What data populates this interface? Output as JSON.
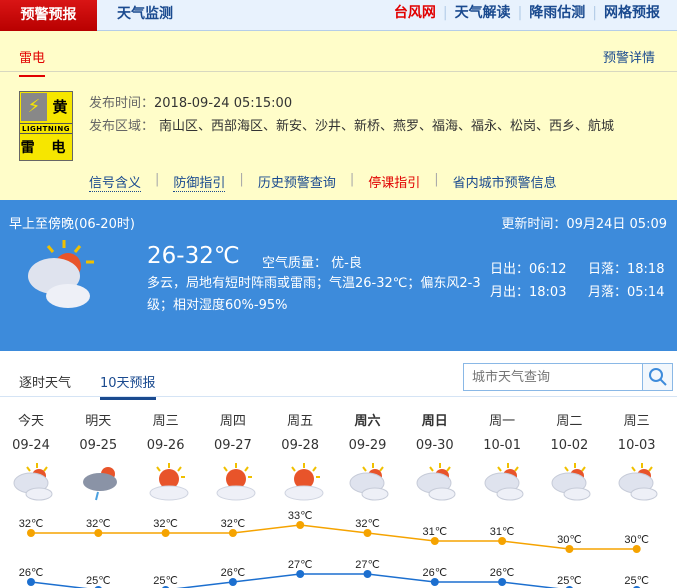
{
  "topnav": {
    "active": "预警预报",
    "monitor": "天气监测",
    "links": [
      {
        "label": "台风网",
        "color": "#e10000"
      },
      {
        "label": "天气解读",
        "color": "#1a4a8f"
      },
      {
        "label": "降雨估测",
        "color": "#1a4a8f"
      },
      {
        "label": "网格预报",
        "color": "#1a4a8f"
      }
    ]
  },
  "warning": {
    "tab": "雷电",
    "detail_link": "预警详情",
    "badge": {
      "level": "黄",
      "en": "LIGHTNING",
      "cn": "雷 电"
    },
    "time_label": "发布时间：",
    "time": "2018-09-24 05:15:00",
    "area_label": "发布区域：",
    "area": "南山区、西部海区、新安、沙井、新桥、燕罗、福海、福永、松岗、西乡、航城",
    "links": [
      "信号含义",
      "防御指引",
      "历史预警查询",
      "停课指引",
      "省内城市预警信息"
    ]
  },
  "current": {
    "period": "早上至傍晚(06-20时)",
    "updated": "更新时间：09月24日 05:09",
    "temp": "26-32℃",
    "aq": "空气质量： 优-良",
    "desc": "多云，局地有短时阵雨或雷雨；气温26-32℃；偏东风2-3级；相对湿度60%-95%",
    "sunrise": "日出：06:12",
    "sunset": "日落：18:18",
    "moonrise": "月出：18:03",
    "moonset": "月落：05:14",
    "icon": "partly-cloudy-icon"
  },
  "forecast_tabs": [
    "逐时天气",
    "10天预报"
  ],
  "search": {
    "placeholder": "城市天气查询"
  },
  "forecast": [
    {
      "day": "今天",
      "date": "09-24",
      "icon": "cloudy",
      "high": 32,
      "low": 26,
      "bold": false
    },
    {
      "day": "明天",
      "date": "09-25",
      "icon": "thunder-rain",
      "high": 32,
      "low": 25,
      "bold": false
    },
    {
      "day": "周三",
      "date": "09-26",
      "icon": "sunny-cloud",
      "high": 32,
      "low": 25,
      "bold": false
    },
    {
      "day": "周四",
      "date": "09-27",
      "icon": "sunny-cloud",
      "high": 32,
      "low": 26,
      "bold": false
    },
    {
      "day": "周五",
      "date": "09-28",
      "icon": "sunny-cloud",
      "high": 33,
      "low": 27,
      "bold": false
    },
    {
      "day": "周六",
      "date": "09-29",
      "icon": "cloudy",
      "high": 32,
      "low": 27,
      "bold": true
    },
    {
      "day": "周日",
      "date": "09-30",
      "icon": "cloudy",
      "high": 31,
      "low": 26,
      "bold": true
    },
    {
      "day": "周一",
      "date": "10-01",
      "icon": "cloudy",
      "high": 31,
      "low": 26,
      "bold": false
    },
    {
      "day": "周二",
      "date": "10-02",
      "icon": "cloudy",
      "high": 30,
      "low": 25,
      "bold": false
    },
    {
      "day": "周三",
      "date": "10-03",
      "icon": "cloudy",
      "high": 30,
      "low": 25,
      "bold": false
    }
  ],
  "unit": "℃",
  "colors": {
    "high": "#f5a300",
    "low": "#1c6fcf",
    "accent": "#3d8bdb",
    "warn_bg": "#fffdc9"
  }
}
